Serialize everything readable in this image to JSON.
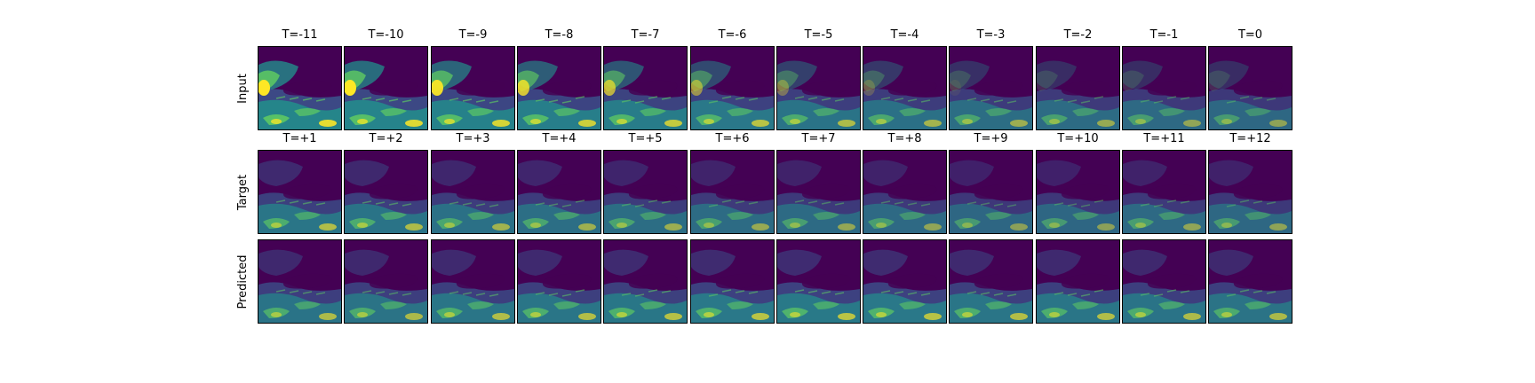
{
  "rows": [
    {
      "label": "Input",
      "panels": [
        {
          "title": "T=-11",
          "intensity": 0.98
        },
        {
          "title": "T=-10",
          "intensity": 0.94
        },
        {
          "title": "T=-9",
          "intensity": 0.88
        },
        {
          "title": "T=-8",
          "intensity": 0.82
        },
        {
          "title": "T=-7",
          "intensity": 0.76
        },
        {
          "title": "T=-6",
          "intensity": 0.68
        },
        {
          "title": "T=-5",
          "intensity": 0.6
        },
        {
          "title": "T=-4",
          "intensity": 0.54
        },
        {
          "title": "T=-3",
          "intensity": 0.48
        },
        {
          "title": "T=-2",
          "intensity": 0.44
        },
        {
          "title": "T=-1",
          "intensity": 0.4
        },
        {
          "title": "T=0",
          "intensity": 0.38
        }
      ]
    },
    {
      "label": "Target",
      "panels": [
        {
          "title": "T=+1",
          "intensity": 0.62
        },
        {
          "title": "T=+2",
          "intensity": 0.6
        },
        {
          "title": "T=+3",
          "intensity": 0.52
        },
        {
          "title": "T=+4",
          "intensity": 0.5
        },
        {
          "title": "T=+5",
          "intensity": 0.48
        },
        {
          "title": "T=+6",
          "intensity": 0.44
        },
        {
          "title": "T=+7",
          "intensity": 0.42
        },
        {
          "title": "T=+8",
          "intensity": 0.4
        },
        {
          "title": "T=+9",
          "intensity": 0.36
        },
        {
          "title": "T=+10",
          "intensity": 0.36
        },
        {
          "title": "T=+11",
          "intensity": 0.4
        },
        {
          "title": "T=+12",
          "intensity": 0.38
        }
      ]
    },
    {
      "label": "Predicted",
      "panels": [
        {
          "title": "",
          "intensity": 0.6
        },
        {
          "title": "",
          "intensity": 0.58
        },
        {
          "title": "",
          "intensity": 0.62
        },
        {
          "title": "",
          "intensity": 0.64
        },
        {
          "title": "",
          "intensity": 0.66
        },
        {
          "title": "",
          "intensity": 0.68
        },
        {
          "title": "",
          "intensity": 0.7
        },
        {
          "title": "",
          "intensity": 0.68
        },
        {
          "title": "",
          "intensity": 0.64
        },
        {
          "title": "",
          "intensity": 0.62
        },
        {
          "title": "",
          "intensity": 0.6
        },
        {
          "title": "",
          "intensity": 0.58
        }
      ]
    }
  ],
  "colors": {
    "background": "#440154",
    "low": "#3b528b",
    "mid": "#21918c",
    "high": "#5ec962",
    "peak": "#fde725"
  }
}
